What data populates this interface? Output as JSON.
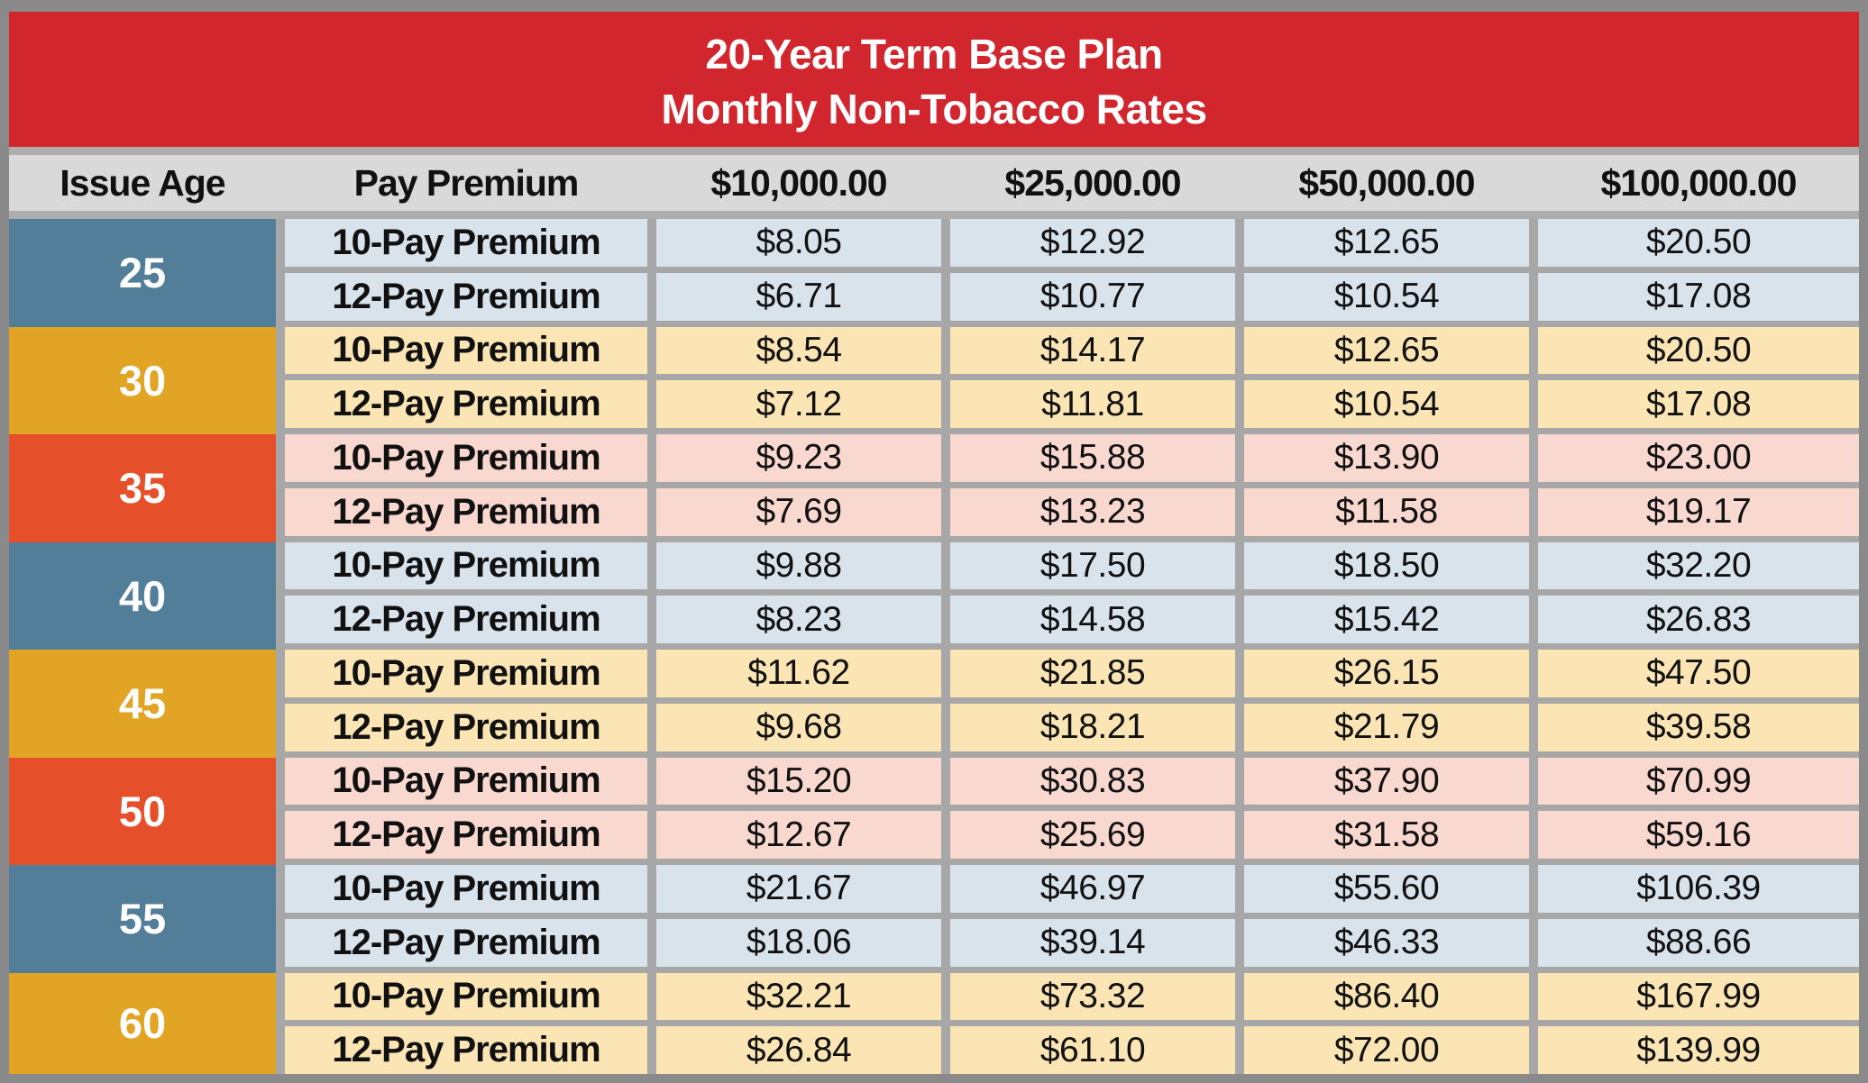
{
  "title": {
    "line1": "20-Year Term Base Plan",
    "line2": "Monthly Non-Tobacco Rates"
  },
  "columns": [
    "Issue Age",
    "Pay Premium",
    "$10,000.00",
    "$25,000.00",
    "$50,000.00",
    "$100,000.00"
  ],
  "row_labels": [
    "10-Pay Premium",
    "12-Pay Premium"
  ],
  "colors": {
    "banner": "#D2262F",
    "header_bg": "#D9D9D9",
    "grid_line": "#A7A7A7",
    "outer_border": "#8A8A8A",
    "separator_band": "#ADADAD",
    "age": {
      "blue": "#537E99",
      "amber": "#E2A424",
      "red": "#E5502B"
    },
    "row": {
      "blue": "#D8E3EB",
      "amber": "#FBE5B4",
      "red": "#F9D8D0"
    },
    "text_on_age": "#FFFFFF",
    "text_on_rows": "#111111"
  },
  "table": {
    "groups": [
      {
        "age": "25",
        "tint": "blue",
        "rows": [
          [
            "$8.05",
            "$12.92",
            "$12.65",
            "$20.50"
          ],
          [
            "$6.71",
            "$10.77",
            "$10.54",
            "$17.08"
          ]
        ]
      },
      {
        "age": "30",
        "tint": "amber",
        "rows": [
          [
            "$8.54",
            "$14.17",
            "$12.65",
            "$20.50"
          ],
          [
            "$7.12",
            "$11.81",
            "$10.54",
            "$17.08"
          ]
        ]
      },
      {
        "age": "35",
        "tint": "red",
        "rows": [
          [
            "$9.23",
            "$15.88",
            "$13.90",
            "$23.00"
          ],
          [
            "$7.69",
            "$13.23",
            "$11.58",
            "$19.17"
          ]
        ]
      },
      {
        "age": "40",
        "tint": "blue",
        "rows": [
          [
            "$9.88",
            "$17.50",
            "$18.50",
            "$32.20"
          ],
          [
            "$8.23",
            "$14.58",
            "$15.42",
            "$26.83"
          ]
        ]
      },
      {
        "age": "45",
        "tint": "amber",
        "rows": [
          [
            "$11.62",
            "$21.85",
            "$26.15",
            "$47.50"
          ],
          [
            "$9.68",
            "$18.21",
            "$21.79",
            "$39.58"
          ]
        ]
      },
      {
        "age": "50",
        "tint": "red",
        "rows": [
          [
            "$15.20",
            "$30.83",
            "$37.90",
            "$70.99"
          ],
          [
            "$12.67",
            "$25.69",
            "$31.58",
            "$59.16"
          ]
        ]
      },
      {
        "age": "55",
        "tint": "blue",
        "rows": [
          [
            "$21.67",
            "$46.97",
            "$55.60",
            "$106.39"
          ],
          [
            "$18.06",
            "$39.14",
            "$46.33",
            "$88.66"
          ]
        ]
      },
      {
        "age": "60",
        "tint": "amber",
        "rows": [
          [
            "$32.21",
            "$73.32",
            "$86.40",
            "$167.99"
          ],
          [
            "$26.84",
            "$61.10",
            "$72.00",
            "$139.99"
          ]
        ]
      }
    ]
  }
}
